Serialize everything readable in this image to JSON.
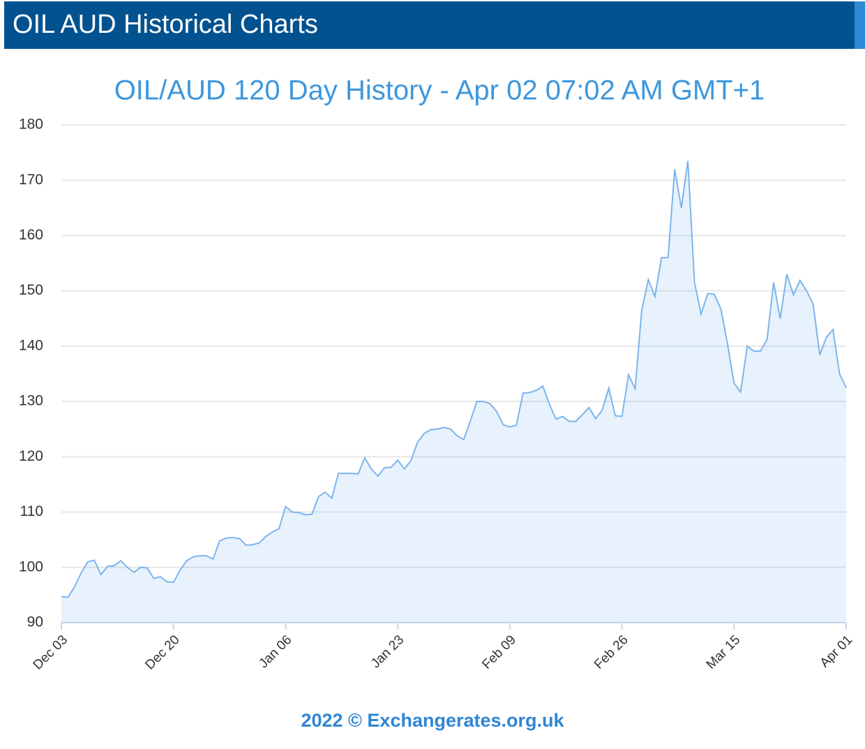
{
  "header": {
    "title": "OIL AUD Historical Charts"
  },
  "chart_data": {
    "type": "area",
    "title": "OIL/AUD 120 Day History - Apr 02 07:02 AM GMT+1",
    "categories": [
      "Dec 03",
      null,
      null,
      null,
      null,
      null,
      null,
      null,
      null,
      null,
      null,
      null,
      null,
      null,
      null,
      null,
      null,
      "Dec 20",
      null,
      null,
      null,
      null,
      null,
      null,
      null,
      null,
      null,
      null,
      null,
      null,
      null,
      null,
      null,
      null,
      "Jan 06",
      null,
      null,
      null,
      null,
      null,
      null,
      null,
      null,
      null,
      null,
      null,
      null,
      null,
      null,
      null,
      null,
      "Jan 23",
      null,
      null,
      null,
      null,
      null,
      null,
      null,
      null,
      null,
      null,
      null,
      null,
      null,
      null,
      null,
      null,
      "Feb 09",
      null,
      null,
      null,
      null,
      null,
      null,
      null,
      null,
      null,
      null,
      null,
      null,
      null,
      null,
      null,
      null,
      "Feb 26",
      null,
      null,
      null,
      null,
      null,
      null,
      null,
      null,
      null,
      null,
      null,
      null,
      null,
      null,
      null,
      null,
      "Mar 15",
      null,
      null,
      null,
      null,
      null,
      null,
      null,
      null,
      null,
      null,
      null,
      null,
      null,
      null,
      null,
      null,
      "Apr 01"
    ],
    "values": [
      94.7,
      94.6,
      96.5,
      99,
      101,
      101.3,
      98.7,
      100.2,
      100.3,
      101.2,
      100,
      99.1,
      100,
      99.9,
      98,
      98.3,
      97.4,
      97.3,
      99.5,
      101.2,
      101.9,
      102.1,
      102.1,
      101.5,
      104.8,
      105.3,
      105.4,
      105.2,
      104,
      104.1,
      104.4,
      105.6,
      106.4,
      107,
      111,
      110,
      109.9,
      109.5,
      109.6,
      112.8,
      113.6,
      112.5,
      117,
      117,
      117,
      116.9,
      119.8,
      117.8,
      116.5,
      118,
      118.1,
      119.4,
      117.8,
      119.3,
      122.6,
      124.2,
      124.9,
      125,
      125.3,
      125,
      123.8,
      123.1,
      126.4,
      130,
      130,
      129.6,
      128.2,
      125.8,
      125.4,
      125.7,
      131.5,
      131.6,
      132,
      132.8,
      129.5,
      126.8,
      127.3,
      126.4,
      126.4,
      127.6,
      128.9,
      126.9,
      128.4,
      132.4,
      127.4,
      127.3,
      134.8,
      132.3,
      146.5,
      152,
      149,
      156,
      156,
      172,
      165,
      173.5,
      151.5,
      145.8,
      149.5,
      149.4,
      146.7,
      140.5,
      133.3,
      131.7,
      140,
      139.1,
      139.1,
      141.2,
      151.5,
      145,
      153,
      149.3,
      151.9,
      150,
      147.6,
      138.4,
      141.6,
      143,
      135,
      132.5
    ],
    "color": "#7cb5ec",
    "ylim": [
      90,
      180
    ],
    "yticks": [
      90,
      100,
      110,
      120,
      130,
      140,
      150,
      160,
      170,
      180
    ],
    "grid": true
  },
  "footer": {
    "text": "2022 © Exchangerates.org.uk"
  }
}
